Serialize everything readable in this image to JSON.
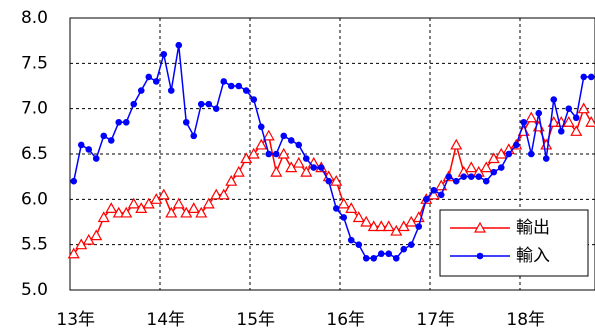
{
  "chart_data": {
    "type": "line",
    "categories": [
      "13年",
      null,
      null,
      null,
      null,
      null,
      null,
      null,
      null,
      null,
      null,
      null,
      "14年",
      null,
      null,
      null,
      null,
      null,
      null,
      null,
      null,
      null,
      null,
      null,
      "15年",
      null,
      null,
      null,
      null,
      null,
      null,
      null,
      null,
      null,
      null,
      null,
      "16年",
      null,
      null,
      null,
      null,
      null,
      null,
      null,
      null,
      null,
      null,
      null,
      "17年",
      null,
      null,
      null,
      null,
      null,
      null,
      null,
      null,
      null,
      null,
      null,
      "18年",
      null,
      null,
      null,
      null,
      null,
      null,
      null,
      null,
      null
    ],
    "series": [
      {
        "name": "輸出",
        "color": "#ff0000",
        "marker": "triangle-open",
        "values": [
          5.4,
          5.5,
          5.55,
          5.6,
          5.8,
          5.9,
          5.85,
          5.85,
          5.95,
          5.9,
          5.95,
          6.0,
          6.05,
          5.85,
          5.95,
          5.85,
          5.9,
          5.85,
          5.95,
          6.05,
          6.05,
          6.2,
          6.3,
          6.45,
          6.5,
          6.6,
          6.7,
          6.3,
          6.5,
          6.35,
          6.4,
          6.3,
          6.4,
          6.35,
          6.25,
          6.2,
          5.95,
          5.9,
          5.8,
          5.75,
          5.7,
          5.7,
          5.7,
          5.65,
          5.7,
          5.75,
          5.8,
          6.0,
          6.05,
          6.15,
          6.25,
          6.6,
          6.3,
          6.35,
          6.3,
          6.35,
          6.45,
          6.5,
          6.55,
          6.6,
          6.75,
          6.9,
          6.8,
          6.6,
          6.85,
          6.85,
          6.85,
          6.75,
          7.0,
          6.85
        ]
      },
      {
        "name": "輸入",
        "color": "#0000ff",
        "marker": "circle",
        "values": [
          6.2,
          6.6,
          6.55,
          6.45,
          6.7,
          6.65,
          6.85,
          6.85,
          7.05,
          7.2,
          7.35,
          7.3,
          7.6,
          7.2,
          7.7,
          6.85,
          6.7,
          7.05,
          7.05,
          7.0,
          7.3,
          7.25,
          7.25,
          7.2,
          7.1,
          6.8,
          6.5,
          6.5,
          6.7,
          6.65,
          6.6,
          6.45,
          6.35,
          6.35,
          6.2,
          5.9,
          5.8,
          5.55,
          5.5,
          5.35,
          5.35,
          5.4,
          5.4,
          5.35,
          5.45,
          5.5,
          5.7,
          6.0,
          6.1,
          6.05,
          6.25,
          6.2,
          6.25,
          6.25,
          6.25,
          6.2,
          6.3,
          6.35,
          6.5,
          6.6,
          6.85,
          6.5,
          6.95,
          6.45,
          7.1,
          6.75,
          7.0,
          6.9,
          7.35,
          7.35
        ]
      }
    ],
    "ylim": [
      5,
      8
    ],
    "yticks": [
      {
        "value": 5,
        "label": "5.0"
      },
      5.5,
      {
        "value": 6,
        "label": "6.0"
      },
      6.5,
      {
        "value": 7,
        "label": "7.0"
      },
      7.5,
      {
        "value": 8,
        "label": "8.0"
      }
    ],
    "grid": true,
    "legend": "lower right"
  }
}
